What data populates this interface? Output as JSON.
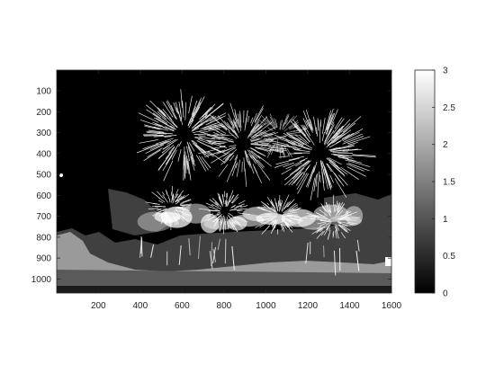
{
  "chart_data": {
    "type": "heatmap",
    "title": "",
    "xlabel": "",
    "ylabel": "",
    "image_description_levels": 4,
    "x_axis": {
      "range": [
        1,
        1600
      ],
      "ticks": [
        200,
        400,
        600,
        800,
        1000,
        1200,
        1400,
        1600
      ]
    },
    "y_axis": {
      "range": [
        1,
        1067
      ],
      "reversed": true,
      "ticks": [
        100,
        200,
        300,
        400,
        500,
        600,
        700,
        800,
        900,
        1000
      ]
    },
    "colorbar": {
      "range": [
        0,
        3
      ],
      "ticks": [
        "0",
        "0.5",
        "1",
        "1.5",
        "2",
        "2.5",
        "3"
      ],
      "colormap": "gray",
      "placement": "right"
    },
    "colors": {
      "axes_bg": "#000000",
      "frame": "#262626",
      "level1": "#404040",
      "level2": "#9a9a9a",
      "level3": "#ffffff"
    }
  }
}
